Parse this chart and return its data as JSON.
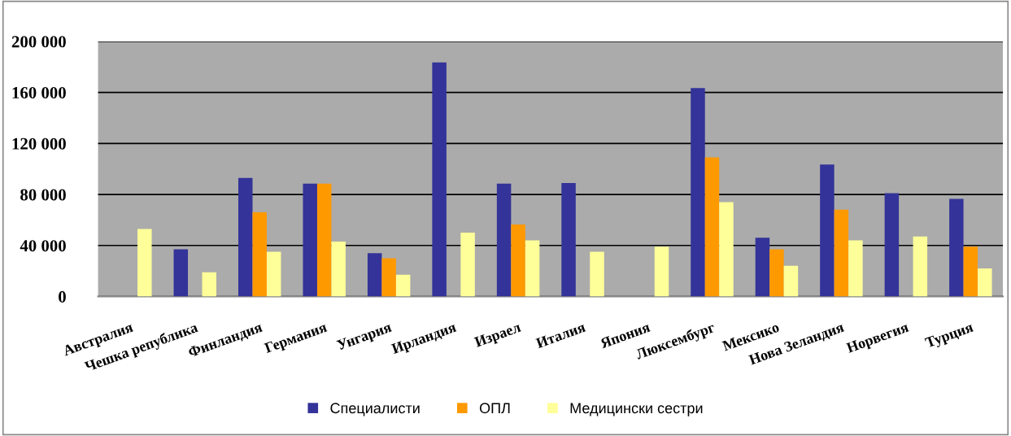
{
  "chart_data": {
    "type": "bar",
    "categories": [
      "Австралия",
      "Чешка република",
      "Финландия",
      "Германия",
      "Унгария",
      "Ирландия",
      "Израел",
      "Италия",
      "Япония",
      "Люксембург",
      "Мексико",
      "Нова Зеландия",
      "Норвегия",
      "Турция"
    ],
    "series": [
      {
        "name": "Специалисти",
        "color": "#333399",
        "values": [
          null,
          37000,
          93000,
          88500,
          34000,
          183500,
          88500,
          89000,
          null,
          163500,
          46000,
          103500,
          81000,
          76500
        ]
      },
      {
        "name": "ОПЛ",
        "color": "#ff9900",
        "values": [
          null,
          null,
          66000,
          88500,
          30000,
          null,
          56500,
          null,
          null,
          109000,
          37000,
          68000,
          null,
          39000
        ]
      },
      {
        "name": "Медицински сестри",
        "color": "#ffff99",
        "values": [
          53000,
          19000,
          35000,
          43000,
          17000,
          50000,
          44000,
          35000,
          39000,
          74000,
          24000,
          44000,
          47000,
          22000
        ]
      }
    ],
    "ylim": [
      0,
      200000
    ],
    "yticks": [
      {
        "value": 0,
        "label": "0"
      },
      {
        "value": 40000,
        "label": "40 000"
      },
      {
        "value": 80000,
        "label": "80 000"
      },
      {
        "value": 120000,
        "label": "120 000"
      },
      {
        "value": 160000,
        "label": "160 000"
      },
      {
        "value": 200000,
        "label": "200 000"
      }
    ],
    "grid": "y",
    "legend": "bottom"
  }
}
